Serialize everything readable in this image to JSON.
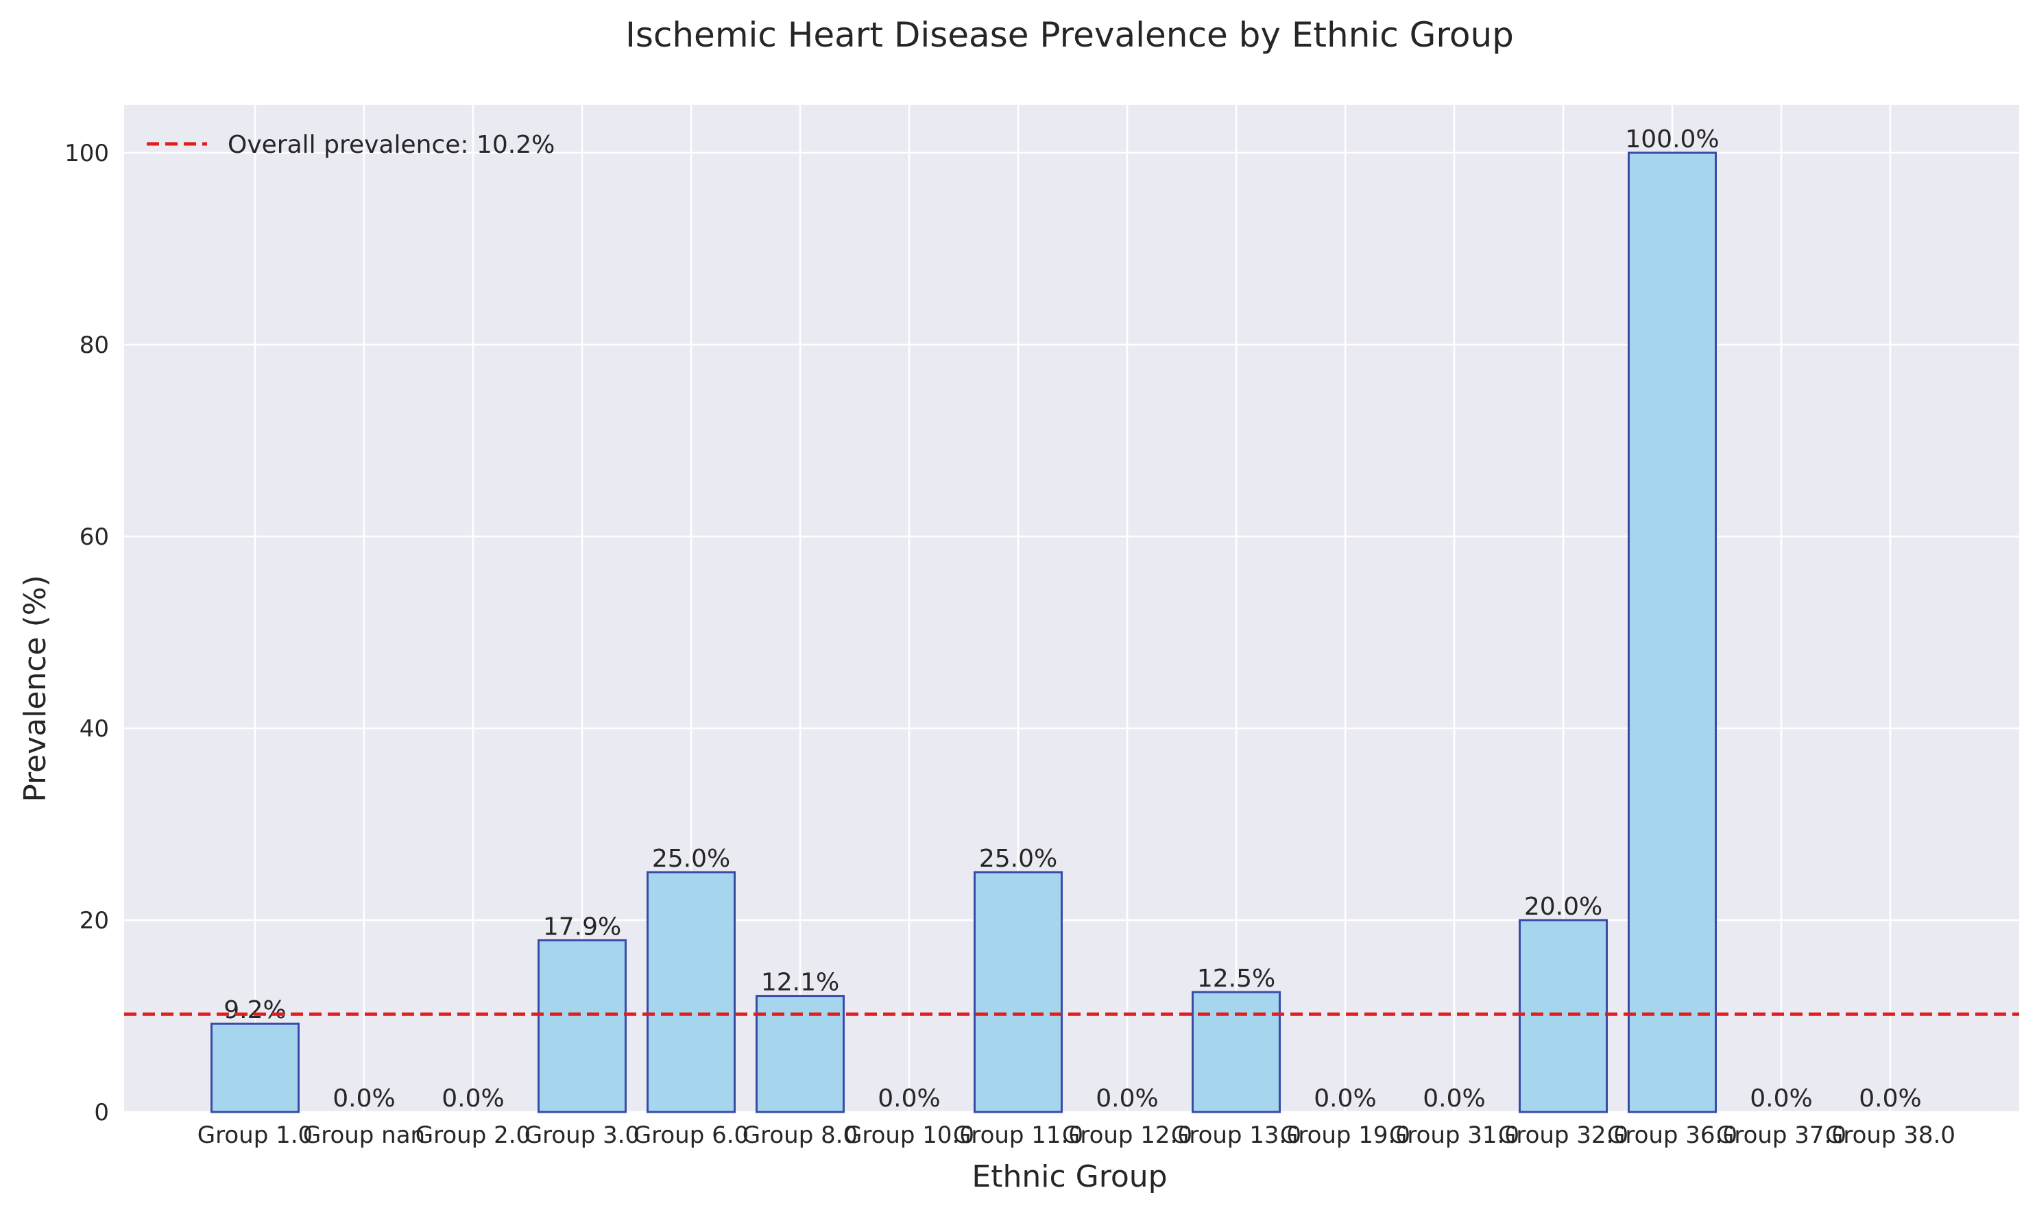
{
  "chart_data": {
    "type": "bar",
    "title": "Ischemic Heart Disease Prevalence by Ethnic Group",
    "xlabel": "Ethnic Group",
    "ylabel": "Prevalence (%)",
    "ylim": [
      0,
      105
    ],
    "yticks": [
      0,
      20,
      40,
      60,
      80,
      100
    ],
    "grid": true,
    "categories": [
      "Group 1.0",
      "Group nan",
      "Group 2.0",
      "Group 3.0",
      "Group 6.0",
      "Group 8.0",
      "Group 10.0",
      "Group 11.0",
      "Group 12.0",
      "Group 13.0",
      "Group 19.0",
      "Group 31.0",
      "Group 32.0",
      "Group 36.0",
      "Group 37.0",
      "Group 38.0"
    ],
    "values": [
      9.2,
      0.0,
      0.0,
      17.9,
      25.0,
      12.1,
      0.0,
      25.0,
      0.0,
      12.5,
      0.0,
      0.0,
      20.0,
      100.0,
      0.0,
      0.0
    ],
    "value_labels": [
      "9.2%",
      "0.0%",
      "0.0%",
      "17.9%",
      "25.0%",
      "12.1%",
      "0.0%",
      "25.0%",
      "0.0%",
      "12.5%",
      "0.0%",
      "0.0%",
      "20.0%",
      "100.0%",
      "0.0%",
      "0.0%"
    ],
    "reference_line": {
      "value": 10.2,
      "label": "Overall prevalence: 10.2%",
      "color": "#e01e1e",
      "style": "dashed"
    },
    "legend_placement": "top-left",
    "colors": {
      "bar_fill": "#a6d6ee",
      "bar_edge": "#3a4aa8",
      "plot_bg": "#eaeaf2",
      "grid": "#ffffff"
    }
  }
}
